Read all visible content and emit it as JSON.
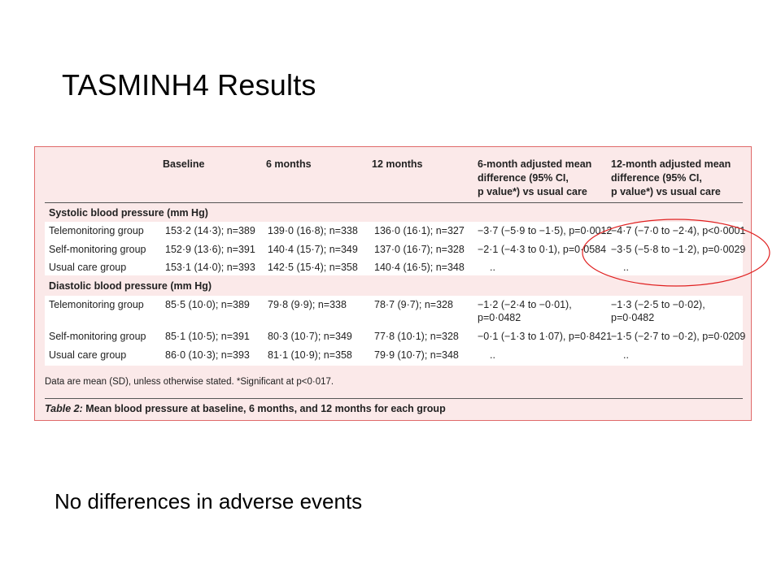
{
  "slide": {
    "title": "TASMINH4 Results",
    "footer_text": "No differences in adverse events"
  },
  "table": {
    "headers": {
      "baseline": "Baseline",
      "m6": "6 months",
      "m12": "12 months",
      "diff6": [
        "6-month adjusted mean",
        "difference (95% CI,",
        "p value*) vs usual care"
      ],
      "diff12": [
        "12-month adjusted mean",
        "difference (95% CI,",
        "p value*) vs usual care"
      ]
    },
    "sections": [
      {
        "title": "Systolic blood pressure (mm Hg)",
        "rows": [
          {
            "group": "Telemonitoring group",
            "baseline": "153·2 (14·3); n=389",
            "m6": "139·0 (16·8); n=338",
            "m12": "136·0 (16·1); n=327",
            "diff6": [
              "−3·7 (−5·9 to −1·5), p=0·0012"
            ],
            "diff12": [
              "−4·7 (−7·0 to −2·4), p<0·0001"
            ]
          },
          {
            "group": "Self-monitoring group",
            "baseline": "152·9 (13·6); n=391",
            "m6": "140·4 (15·7); n=349",
            "m12": "137·0 (16·7); n=328",
            "diff6": [
              "−2·1 (−4·3 to 0·1), p=0·0584"
            ],
            "diff12": [
              "−3·5 (−5·8 to −1·2), p=0·0029"
            ]
          },
          {
            "group": "Usual care group",
            "baseline": "153·1 (14·0); n=393",
            "m6": "142·5 (15·4); n=358",
            "m12": "140·4 (16·5); n=348",
            "diff6": [
              ".."
            ],
            "diff12": [
              ".."
            ]
          }
        ]
      },
      {
        "title": "Diastolic blood pressure (mm Hg)",
        "rows": [
          {
            "group": "Telemonitoring group",
            "baseline": "85·5 (10·0); n=389",
            "m6": "79·8 (9·9); n=338",
            "m12": "78·7 (9·7); n=328",
            "diff6": [
              "−1·2 (−2·4 to −0·01),",
              "p=0·0482"
            ],
            "diff12": [
              "−1·3 (−2·5 to −0·02),",
              "p=0·0482"
            ]
          },
          {
            "group": "Self-monitoring group",
            "baseline": "85·1 (10·5); n=391",
            "m6": "80·3 (10·7); n=349",
            "m12": "77·8 (10·1); n=328",
            "diff6": [
              "−0·1 (−1·3 to 1·07), p=0·8421"
            ],
            "diff12": [
              "−1·5 (−2·7 to −0·2), p=0·0209"
            ]
          },
          {
            "group": "Usual care group",
            "baseline": "86·0 (10·3); n=393",
            "m6": "81·1 (10·9); n=358",
            "m12": "79·9 (10·7); n=348",
            "diff6": [
              ".."
            ],
            "diff12": [
              ".."
            ]
          }
        ]
      }
    ],
    "footnote": "Data are mean (SD), unless otherwise stated. *Significant at p<0·017.",
    "caption_label": "Table 2:",
    "caption_text": " Mean blood pressure at baseline, 6 months, and 12 months for each group"
  },
  "annotation": {
    "highlight_color": "#e02020",
    "highlight_target": "12-month systolic differences"
  }
}
